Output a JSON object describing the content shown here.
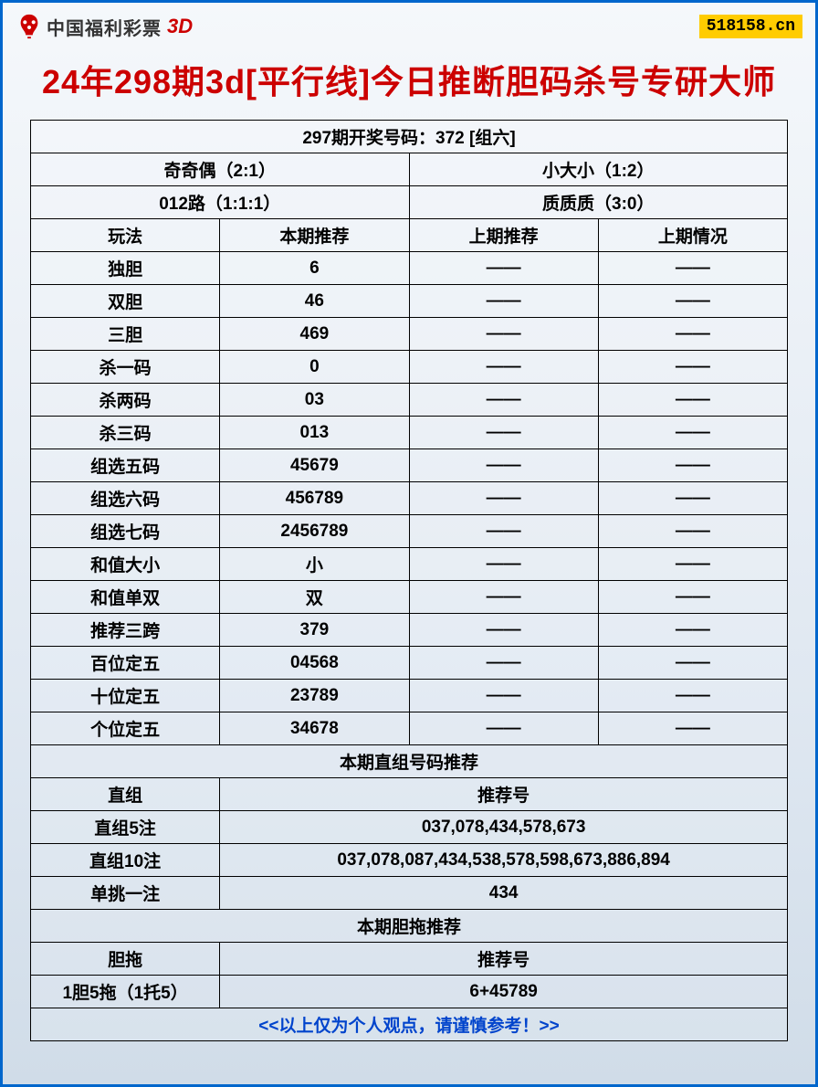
{
  "header": {
    "logo_text": "中国福利彩票",
    "logo_3d": "3D",
    "site_badge": "518158.cn"
  },
  "title": "24年298期3d[平行线]今日推断胆码杀号专研大师",
  "draw_result": "297期开奖号码：372 [组六]",
  "summary": {
    "left1": "奇奇偶（2:1）",
    "right1": "小大小（1:2）",
    "left2": "012路（1:1:1）",
    "right2": "质质质（3:0）"
  },
  "columns": {
    "c1": "玩法",
    "c2": "本期推荐",
    "c3": "上期推荐",
    "c4": "上期情况"
  },
  "rows": [
    {
      "name": "独胆",
      "current": "6",
      "prev": "——",
      "status": "——"
    },
    {
      "name": "双胆",
      "current": "46",
      "prev": "——",
      "status": "——"
    },
    {
      "name": "三胆",
      "current": "469",
      "prev": "——",
      "status": "——"
    },
    {
      "name": "杀一码",
      "current": "0",
      "prev": "——",
      "status": "——"
    },
    {
      "name": "杀两码",
      "current": "03",
      "prev": "——",
      "status": "——"
    },
    {
      "name": "杀三码",
      "current": "013",
      "prev": "——",
      "status": "——"
    },
    {
      "name": "组选五码",
      "current": "45679",
      "prev": "——",
      "status": "——"
    },
    {
      "name": "组选六码",
      "current": "456789",
      "prev": "——",
      "status": "——"
    },
    {
      "name": "组选七码",
      "current": "2456789",
      "prev": "——",
      "status": "——"
    },
    {
      "name": "和值大小",
      "current": "小",
      "prev": "——",
      "status": "——"
    },
    {
      "name": "和值单双",
      "current": "双",
      "prev": "——",
      "status": "——"
    },
    {
      "name": "推荐三跨",
      "current": "379",
      "prev": "——",
      "status": "——"
    },
    {
      "name": "百位定五",
      "current": "04568",
      "prev": "——",
      "status": "——"
    },
    {
      "name": "十位定五",
      "current": "23789",
      "prev": "——",
      "status": "——"
    },
    {
      "name": "个位定五",
      "current": "34678",
      "prev": "——",
      "status": "——"
    }
  ],
  "direct_section": {
    "title": "本期直组号码推荐",
    "header_left": "直组",
    "header_right": "推荐号",
    "rows": [
      {
        "name": "直组5注",
        "value": "037,078,434,578,673"
      },
      {
        "name": "直组10注",
        "value": "037,078,087,434,538,578,598,673,886,894"
      },
      {
        "name": "单挑一注",
        "value": "434"
      }
    ]
  },
  "dantuo_section": {
    "title": "本期胆拖推荐",
    "header_left": "胆拖",
    "header_right": "推荐号",
    "rows": [
      {
        "name": "1胆5拖（1托5）",
        "value": "6+45789"
      }
    ]
  },
  "footer": "<<以上仅为个人观点，请谨慎参考！>>",
  "colors": {
    "border": "#0066cc",
    "title": "#cc0000",
    "footer": "#0044cc",
    "badge_bg": "#ffcc00"
  }
}
